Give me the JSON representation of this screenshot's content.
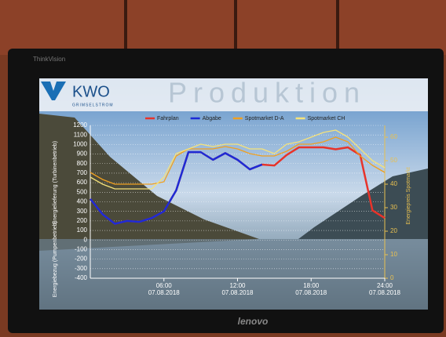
{
  "brand": "ThinkVision",
  "maker": "lenovo",
  "logo": "KWO",
  "logo_sub": "GRIMSELSTROM",
  "chart_data": {
    "type": "line",
    "title": "Produktion",
    "x": [
      0,
      1,
      2,
      3,
      4,
      5,
      6,
      7,
      8,
      9,
      10,
      11,
      12,
      13,
      14,
      15,
      16,
      17,
      18,
      19,
      20,
      21,
      22,
      23,
      24
    ],
    "xlim": [
      0,
      24
    ],
    "xticks": [
      {
        "value": 6,
        "label": "06:00\n07.08.2018"
      },
      {
        "value": 12,
        "label": "12:00\n07.08.2018"
      },
      {
        "value": 18,
        "label": "18:00\n07.08.2018"
      },
      {
        "value": 24,
        "label": "24:00\n07.08.2018"
      }
    ],
    "ylim": [
      -400,
      1200
    ],
    "yticks": [
      -400,
      -300,
      -200,
      -100,
      0,
      100,
      200,
      300,
      400,
      500,
      600,
      700,
      800,
      900,
      1000,
      1100,
      1200
    ],
    "y2lim": [
      0,
      65
    ],
    "y2ticks": [
      0,
      10,
      20,
      30,
      40,
      50,
      60
    ],
    "y_label_upper": "Energielieferung (Turbinenbetrieb)",
    "y_label_lower": "Energiebezug (Pumpenbetrieb)",
    "y2_label": "Energiepreis Spotmarkt",
    "grid": true,
    "series": [
      {
        "name": "Fahrplan",
        "color": "#e8332a",
        "values": [
          430,
          270,
          170,
          200,
          190,
          230,
          300,
          520,
          920,
          920,
          840,
          910,
          840,
          740,
          790,
          780,
          890,
          970,
          970,
          970,
          950,
          970,
          890,
          310,
          230
        ]
      },
      {
        "name": "Abgabe",
        "color": "#1d2bd6",
        "values": [
          430,
          270,
          170,
          200,
          190,
          230,
          300,
          520,
          920,
          920,
          840,
          910,
          840,
          740,
          790,
          null,
          null,
          null,
          null,
          null,
          null,
          null,
          null,
          null,
          null
        ]
      },
      {
        "name": "Spotmarket D-A",
        "color": "#f0a020",
        "axis": "y2",
        "values": [
          45,
          42,
          40,
          40,
          40,
          40,
          41,
          52,
          55,
          55,
          55,
          56,
          55,
          53,
          52,
          52,
          54,
          57,
          57,
          58,
          60,
          58,
          52,
          48,
          45
        ]
      },
      {
        "name": "Spotmarket CH",
        "color": "#f5e27a",
        "axis": "y2",
        "values": [
          43,
          40,
          38,
          38,
          38,
          38,
          43,
          53,
          55,
          57,
          56,
          57,
          57,
          55,
          55,
          53,
          57,
          58,
          60,
          62,
          63,
          60,
          55,
          50,
          47
        ]
      }
    ]
  }
}
